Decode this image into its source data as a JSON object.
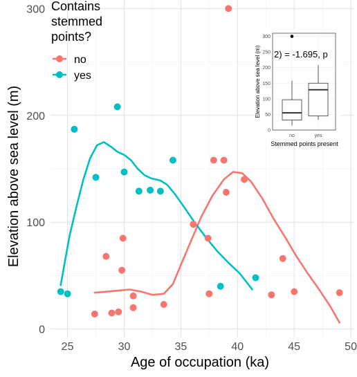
{
  "chart_data": {
    "type": "scatter",
    "xlabel": "Age of occupation (ka)",
    "ylabel": "Elevation above sea level (m)",
    "xlim": [
      23.5,
      50.3
    ],
    "ylim": [
      -8,
      308
    ],
    "x_ticks": [
      25,
      30,
      35,
      40,
      45,
      50
    ],
    "y_ticks": [
      0,
      100,
      200,
      300
    ],
    "grid": true,
    "legend": {
      "title": "Contains\nstemmed\npoints?",
      "position": "top-left",
      "entries": [
        {
          "label": "no",
          "color": "#F8766D"
        },
        {
          "label": "yes",
          "color": "#00BFC4"
        }
      ]
    },
    "series": [
      {
        "name": "no",
        "color": "#F8766D",
        "points": [
          [
            27.4,
            14
          ],
          [
            28.4,
            68
          ],
          [
            28.9,
            15
          ],
          [
            29.5,
            16
          ],
          [
            29.8,
            55
          ],
          [
            29.9,
            85
          ],
          [
            30.8,
            20
          ],
          [
            30.8,
            31
          ],
          [
            33.5,
            23
          ],
          [
            36.1,
            98
          ],
          [
            37.4,
            85
          ],
          [
            37.5,
            33
          ],
          [
            37.9,
            158
          ],
          [
            38.8,
            158
          ],
          [
            39.0,
            128
          ],
          [
            39.2,
            300
          ],
          [
            40.6,
            140
          ],
          [
            43.0,
            32
          ],
          [
            44.0,
            66
          ],
          [
            45.0,
            35
          ],
          [
            49.0,
            34
          ]
        ],
        "smooth": [
          [
            27.4,
            34
          ],
          [
            28.5,
            35
          ],
          [
            29.5,
            36
          ],
          [
            30.5,
            37
          ],
          [
            31.5,
            35
          ],
          [
            32.5,
            32
          ],
          [
            33.5,
            33
          ],
          [
            34.3,
            42
          ],
          [
            35.0,
            60
          ],
          [
            35.8,
            80
          ],
          [
            36.8,
            105
          ],
          [
            37.8,
            125
          ],
          [
            38.8,
            140
          ],
          [
            39.6,
            147
          ],
          [
            40.4,
            146
          ],
          [
            41.2,
            138
          ],
          [
            42.2,
            122
          ],
          [
            43.2,
            103
          ],
          [
            44.2,
            86
          ],
          [
            45.2,
            68
          ],
          [
            46.2,
            52
          ],
          [
            47.2,
            37
          ],
          [
            48.2,
            21
          ],
          [
            49.0,
            6
          ]
        ]
      },
      {
        "name": "yes",
        "color": "#00BFC4",
        "points": [
          [
            24.4,
            35
          ],
          [
            25.0,
            33
          ],
          [
            25.6,
            187
          ],
          [
            27.5,
            142
          ],
          [
            29.4,
            208
          ],
          [
            30.0,
            147
          ],
          [
            31.3,
            129
          ],
          [
            32.3,
            130
          ],
          [
            33.2,
            129
          ],
          [
            34.3,
            158
          ],
          [
            38.5,
            40
          ],
          [
            41.6,
            48
          ]
        ],
        "smooth": [
          [
            24.4,
            41
          ],
          [
            24.8,
            65
          ],
          [
            25.2,
            88
          ],
          [
            25.8,
            115
          ],
          [
            26.4,
            140
          ],
          [
            27.0,
            160
          ],
          [
            27.6,
            172
          ],
          [
            28.2,
            175
          ],
          [
            28.8,
            171
          ],
          [
            29.4,
            166
          ],
          [
            30.0,
            163
          ],
          [
            30.6,
            158
          ],
          [
            31.2,
            150
          ],
          [
            31.8,
            144
          ],
          [
            32.4,
            141
          ],
          [
            33.2,
            139
          ],
          [
            33.8,
            135
          ],
          [
            34.5,
            126
          ],
          [
            35.3,
            114
          ],
          [
            36.2,
            100
          ],
          [
            37.2,
            86
          ],
          [
            38.2,
            73
          ],
          [
            39.2,
            62
          ],
          [
            40.2,
            52
          ],
          [
            41.3,
            37
          ]
        ]
      }
    ],
    "inset": {
      "type": "box",
      "xlabel": "Stemmed points present",
      "ylabel": "Elevation above sea level (m)",
      "categories": [
        "no",
        "yes"
      ],
      "y_ticks": [
        0,
        50,
        100,
        150,
        200,
        250,
        300
      ],
      "ylim": [
        0,
        310
      ],
      "annotation": "2) = -1.695, p",
      "boxes": [
        {
          "category": "no",
          "whisker_low": 14,
          "q1": 32,
          "median": 55,
          "q3": 97,
          "whisker_high": 158,
          "outliers": [
            300
          ]
        },
        {
          "category": "yes",
          "whisker_low": 33,
          "q1": 45,
          "median": 129,
          "q3": 150,
          "whisker_high": 208,
          "outliers": []
        }
      ]
    }
  }
}
